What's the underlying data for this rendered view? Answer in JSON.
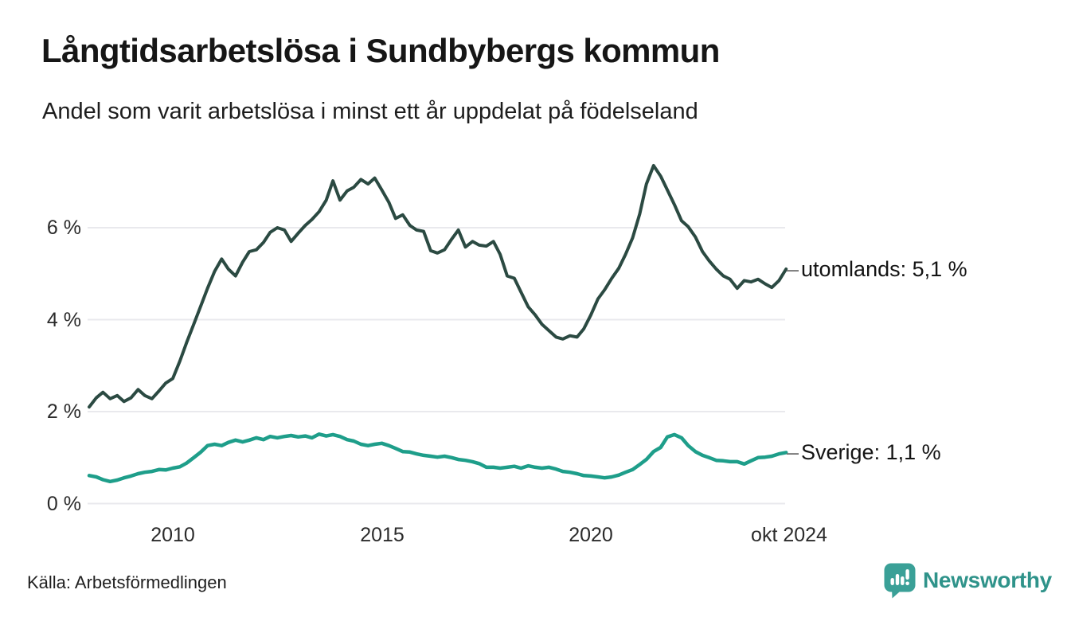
{
  "header": {
    "title": "Långtidsarbetslösa i Sundbybergs kommun",
    "subtitle": "Andel som varit arbetslösa i minst ett år uppdelat på födelseland"
  },
  "footer": {
    "source": "Källa: Arbetsförmedlingen",
    "brand": "Newsworthy"
  },
  "colors": {
    "utomlands_line": "#2b4a42",
    "sverige_line": "#1e9e8a",
    "gridline": "#e9e9ed",
    "tick_text": "#2b2b2b",
    "label_dash": "#6f6f6f",
    "brand_teal": "#3aa097",
    "brand_text": "#2f938a",
    "background": "#ffffff"
  },
  "chart_data": {
    "type": "line",
    "title": "Långtidsarbetslösa i Sundbybergs kommun",
    "subtitle": "Andel som varit arbetslösa i minst ett år uppdelat på födelseland",
    "xlabel": "",
    "ylabel": "",
    "grid": true,
    "legend_position": "right-edge-annotations",
    "x_range": [
      2008.05,
      2024.75
    ],
    "ylim": [
      0,
      7.6
    ],
    "y_axis": {
      "ticks": [
        {
          "label": "0 %",
          "value": 0
        },
        {
          "label": "2 %",
          "value": 2
        },
        {
          "label": "4 %",
          "value": 4
        },
        {
          "label": "6 %",
          "value": 6
        }
      ]
    },
    "x_axis": {
      "ticks": [
        {
          "label": "2010",
          "year": 2010
        },
        {
          "label": "2015",
          "year": 2015
        },
        {
          "label": "2020",
          "year": 2020
        },
        {
          "label": "okt 2024",
          "year": 2024.75
        }
      ]
    },
    "series": [
      {
        "name": "utomlands",
        "end_label": "utomlands: 5,1 %",
        "end_value_text": "5,1 %",
        "color": "#2b4a42",
        "stroke_width": 4,
        "points": [
          [
            2008.0,
            2.1
          ],
          [
            2008.17,
            2.3
          ],
          [
            2008.33,
            2.42
          ],
          [
            2008.5,
            2.28
          ],
          [
            2008.67,
            2.35
          ],
          [
            2008.83,
            2.22
          ],
          [
            2009.0,
            2.3
          ],
          [
            2009.17,
            2.48
          ],
          [
            2009.33,
            2.35
          ],
          [
            2009.5,
            2.28
          ],
          [
            2009.67,
            2.45
          ],
          [
            2009.83,
            2.62
          ],
          [
            2010.0,
            2.72
          ],
          [
            2010.17,
            3.1
          ],
          [
            2010.33,
            3.5
          ],
          [
            2010.5,
            3.9
          ],
          [
            2010.67,
            4.3
          ],
          [
            2010.83,
            4.68
          ],
          [
            2011.0,
            5.05
          ],
          [
            2011.17,
            5.32
          ],
          [
            2011.33,
            5.1
          ],
          [
            2011.5,
            4.95
          ],
          [
            2011.67,
            5.25
          ],
          [
            2011.83,
            5.48
          ],
          [
            2012.0,
            5.52
          ],
          [
            2012.17,
            5.68
          ],
          [
            2012.33,
            5.9
          ],
          [
            2012.5,
            6.0
          ],
          [
            2012.67,
            5.95
          ],
          [
            2012.83,
            5.7
          ],
          [
            2013.0,
            5.88
          ],
          [
            2013.17,
            6.05
          ],
          [
            2013.33,
            6.18
          ],
          [
            2013.5,
            6.35
          ],
          [
            2013.67,
            6.6
          ],
          [
            2013.83,
            7.02
          ],
          [
            2014.0,
            6.6
          ],
          [
            2014.17,
            6.8
          ],
          [
            2014.33,
            6.88
          ],
          [
            2014.5,
            7.05
          ],
          [
            2014.67,
            6.95
          ],
          [
            2014.83,
            7.08
          ],
          [
            2015.0,
            6.82
          ],
          [
            2015.17,
            6.55
          ],
          [
            2015.33,
            6.2
          ],
          [
            2015.5,
            6.28
          ],
          [
            2015.67,
            6.05
          ],
          [
            2015.83,
            5.95
          ],
          [
            2016.0,
            5.92
          ],
          [
            2016.17,
            5.5
          ],
          [
            2016.33,
            5.45
          ],
          [
            2016.5,
            5.52
          ],
          [
            2016.67,
            5.75
          ],
          [
            2016.83,
            5.95
          ],
          [
            2017.0,
            5.58
          ],
          [
            2017.17,
            5.7
          ],
          [
            2017.33,
            5.62
          ],
          [
            2017.5,
            5.6
          ],
          [
            2017.67,
            5.7
          ],
          [
            2017.83,
            5.42
          ],
          [
            2018.0,
            4.95
          ],
          [
            2018.17,
            4.9
          ],
          [
            2018.33,
            4.6
          ],
          [
            2018.5,
            4.28
          ],
          [
            2018.67,
            4.1
          ],
          [
            2018.83,
            3.9
          ],
          [
            2019.0,
            3.76
          ],
          [
            2019.17,
            3.62
          ],
          [
            2019.33,
            3.58
          ],
          [
            2019.5,
            3.65
          ],
          [
            2019.67,
            3.62
          ],
          [
            2019.83,
            3.8
          ],
          [
            2020.0,
            4.1
          ],
          [
            2020.17,
            4.45
          ],
          [
            2020.33,
            4.65
          ],
          [
            2020.5,
            4.9
          ],
          [
            2020.67,
            5.12
          ],
          [
            2020.83,
            5.42
          ],
          [
            2021.0,
            5.78
          ],
          [
            2021.17,
            6.3
          ],
          [
            2021.33,
            6.95
          ],
          [
            2021.5,
            7.35
          ],
          [
            2021.67,
            7.12
          ],
          [
            2021.83,
            6.82
          ],
          [
            2022.0,
            6.5
          ],
          [
            2022.17,
            6.15
          ],
          [
            2022.33,
            6.02
          ],
          [
            2022.5,
            5.8
          ],
          [
            2022.67,
            5.48
          ],
          [
            2022.83,
            5.28
          ],
          [
            2023.0,
            5.1
          ],
          [
            2023.17,
            4.95
          ],
          [
            2023.33,
            4.88
          ],
          [
            2023.5,
            4.68
          ],
          [
            2023.67,
            4.85
          ],
          [
            2023.83,
            4.82
          ],
          [
            2024.0,
            4.88
          ],
          [
            2024.17,
            4.78
          ],
          [
            2024.33,
            4.7
          ],
          [
            2024.5,
            4.85
          ],
          [
            2024.67,
            5.1
          ]
        ]
      },
      {
        "name": "Sverige",
        "end_label": "Sverige: 1,1 %",
        "end_value_text": "1,1 %",
        "color": "#1e9e8a",
        "stroke_width": 4.5,
        "points": [
          [
            2008.0,
            0.61
          ],
          [
            2008.17,
            0.58
          ],
          [
            2008.33,
            0.52
          ],
          [
            2008.5,
            0.48
          ],
          [
            2008.67,
            0.51
          ],
          [
            2008.83,
            0.56
          ],
          [
            2009.0,
            0.6
          ],
          [
            2009.17,
            0.65
          ],
          [
            2009.33,
            0.68
          ],
          [
            2009.5,
            0.7
          ],
          [
            2009.67,
            0.74
          ],
          [
            2009.83,
            0.73
          ],
          [
            2010.0,
            0.77
          ],
          [
            2010.17,
            0.8
          ],
          [
            2010.33,
            0.88
          ],
          [
            2010.5,
            1.0
          ],
          [
            2010.67,
            1.12
          ],
          [
            2010.83,
            1.26
          ],
          [
            2011.0,
            1.29
          ],
          [
            2011.17,
            1.26
          ],
          [
            2011.33,
            1.33
          ],
          [
            2011.5,
            1.38
          ],
          [
            2011.67,
            1.34
          ],
          [
            2011.83,
            1.38
          ],
          [
            2012.0,
            1.43
          ],
          [
            2012.17,
            1.39
          ],
          [
            2012.33,
            1.46
          ],
          [
            2012.5,
            1.43
          ],
          [
            2012.67,
            1.46
          ],
          [
            2012.83,
            1.48
          ],
          [
            2013.0,
            1.45
          ],
          [
            2013.17,
            1.47
          ],
          [
            2013.33,
            1.43
          ],
          [
            2013.5,
            1.51
          ],
          [
            2013.67,
            1.47
          ],
          [
            2013.83,
            1.5
          ],
          [
            2014.0,
            1.46
          ],
          [
            2014.17,
            1.39
          ],
          [
            2014.33,
            1.36
          ],
          [
            2014.5,
            1.29
          ],
          [
            2014.67,
            1.26
          ],
          [
            2014.83,
            1.29
          ],
          [
            2015.0,
            1.31
          ],
          [
            2015.17,
            1.26
          ],
          [
            2015.33,
            1.2
          ],
          [
            2015.5,
            1.13
          ],
          [
            2015.67,
            1.12
          ],
          [
            2015.83,
            1.08
          ],
          [
            2016.0,
            1.05
          ],
          [
            2016.17,
            1.03
          ],
          [
            2016.33,
            1.01
          ],
          [
            2016.5,
            1.03
          ],
          [
            2016.67,
            1.0
          ],
          [
            2016.83,
            0.96
          ],
          [
            2017.0,
            0.94
          ],
          [
            2017.17,
            0.91
          ],
          [
            2017.33,
            0.87
          ],
          [
            2017.5,
            0.79
          ],
          [
            2017.67,
            0.79
          ],
          [
            2017.83,
            0.77
          ],
          [
            2018.0,
            0.79
          ],
          [
            2018.17,
            0.81
          ],
          [
            2018.33,
            0.77
          ],
          [
            2018.5,
            0.82
          ],
          [
            2018.67,
            0.79
          ],
          [
            2018.83,
            0.77
          ],
          [
            2019.0,
            0.79
          ],
          [
            2019.17,
            0.75
          ],
          [
            2019.33,
            0.7
          ],
          [
            2019.5,
            0.68
          ],
          [
            2019.67,
            0.65
          ],
          [
            2019.83,
            0.61
          ],
          [
            2020.0,
            0.6
          ],
          [
            2020.17,
            0.58
          ],
          [
            2020.33,
            0.56
          ],
          [
            2020.5,
            0.58
          ],
          [
            2020.67,
            0.62
          ],
          [
            2020.83,
            0.68
          ],
          [
            2021.0,
            0.74
          ],
          [
            2021.17,
            0.85
          ],
          [
            2021.33,
            0.96
          ],
          [
            2021.5,
            1.13
          ],
          [
            2021.67,
            1.22
          ],
          [
            2021.83,
            1.45
          ],
          [
            2022.0,
            1.5
          ],
          [
            2022.17,
            1.43
          ],
          [
            2022.33,
            1.26
          ],
          [
            2022.5,
            1.13
          ],
          [
            2022.67,
            1.05
          ],
          [
            2022.83,
            1.0
          ],
          [
            2023.0,
            0.94
          ],
          [
            2023.17,
            0.93
          ],
          [
            2023.33,
            0.91
          ],
          [
            2023.5,
            0.91
          ],
          [
            2023.67,
            0.86
          ],
          [
            2023.83,
            0.93
          ],
          [
            2024.0,
            1.0
          ],
          [
            2024.17,
            1.01
          ],
          [
            2024.33,
            1.03
          ],
          [
            2024.5,
            1.08
          ],
          [
            2024.67,
            1.11
          ]
        ]
      }
    ]
  }
}
